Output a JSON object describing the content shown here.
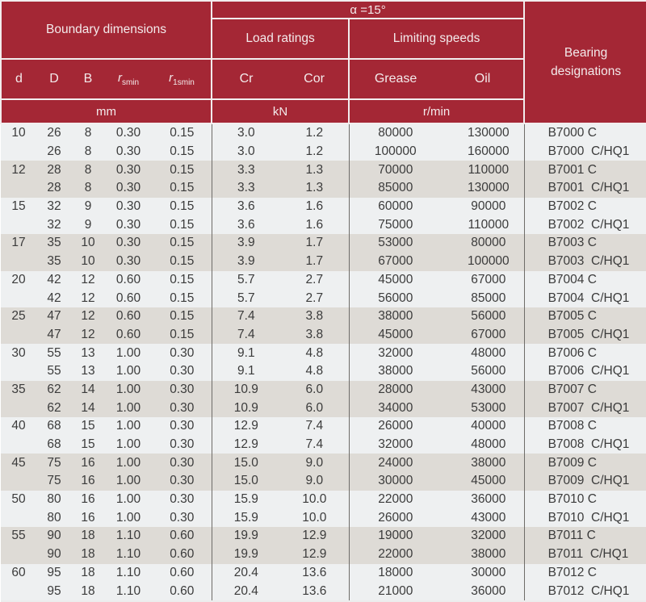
{
  "header": {
    "alpha_label": "α =15°",
    "boundary_dimensions": "Boundary dimensions",
    "load_ratings": "Load ratings",
    "limiting_speeds": "Limiting speeds",
    "bearing_designations": "Bearing designations",
    "columns": {
      "d": "d",
      "D": "D",
      "B": "B",
      "rs_base": "r",
      "rs_sub": "smin",
      "r1s_base": "r",
      "r1s_sub": "1smin",
      "cr": "Cr",
      "cor": "Cor",
      "grease": "Grease",
      "oil": "Oil"
    },
    "units": {
      "mm": "mm",
      "kn": "kN",
      "rmin": "r/min"
    }
  },
  "colors": {
    "header_bg": "#a42735",
    "header_text": "#f3eaeb",
    "line_light": "#f2edee",
    "band_light": "#eef0f1",
    "band_dark": "#dedbd6",
    "grid_line": "#6e6c69",
    "data_text": "#3b3b3b"
  },
  "table": {
    "col_names": [
      "d",
      "D",
      "B",
      "rsmin",
      "r1smin",
      "cr",
      "cor",
      "grease",
      "oil",
      "designation"
    ],
    "rows": [
      [
        "10",
        "26",
        "8",
        "0.30",
        "0.15",
        "3.0",
        "1.2",
        "80000",
        "130000",
        "B7000 C"
      ],
      [
        "",
        "26",
        "8",
        "0.30",
        "0.15",
        "3.0",
        "1.2",
        "100000",
        "160000",
        "B7000  C/HQ1"
      ],
      [
        "12",
        "28",
        "8",
        "0.30",
        "0.15",
        "3.3",
        "1.3",
        "70000",
        "110000",
        "B7001 C"
      ],
      [
        "",
        "28",
        "8",
        "0.30",
        "0.15",
        "3.3",
        "1.3",
        "85000",
        "130000",
        "B7001  C/HQ1"
      ],
      [
        "15",
        "32",
        "9",
        "0.30",
        "0.15",
        "3.6",
        "1.6",
        "60000",
        "90000",
        "B7002 C"
      ],
      [
        "",
        "32",
        "9",
        "0.30",
        "0.15",
        "3.6",
        "1.6",
        "75000",
        "110000",
        "B7002  C/HQ1"
      ],
      [
        "17",
        "35",
        "10",
        "0.30",
        "0.15",
        "3.9",
        "1.7",
        "53000",
        "80000",
        "B7003 C"
      ],
      [
        "",
        "35",
        "10",
        "0.30",
        "0.15",
        "3.9",
        "1.7",
        "67000",
        "100000",
        "B7003  C/HQ1"
      ],
      [
        "20",
        "42",
        "12",
        "0.60",
        "0.15",
        "5.7",
        "2.7",
        "45000",
        "67000",
        "B7004 C"
      ],
      [
        "",
        "42",
        "12",
        "0.60",
        "0.15",
        "5.7",
        "2.7",
        "56000",
        "85000",
        "B7004  C/HQ1"
      ],
      [
        "25",
        "47",
        "12",
        "0.60",
        "0.15",
        "7.4",
        "3.8",
        "38000",
        "56000",
        "B7005 C"
      ],
      [
        "",
        "47",
        "12",
        "0.60",
        "0.15",
        "7.4",
        "3.8",
        "45000",
        "67000",
        "B7005  C/HQ1"
      ],
      [
        "30",
        "55",
        "13",
        "1.00",
        "0.30",
        "9.1",
        "4.8",
        "32000",
        "48000",
        "B7006 C"
      ],
      [
        "",
        "55",
        "13",
        "1.00",
        "0.30",
        "9.1",
        "4.8",
        "38000",
        "56000",
        "B7006  C/HQ1"
      ],
      [
        "35",
        "62",
        "14",
        "1.00",
        "0.30",
        "10.9",
        "6.0",
        "28000",
        "43000",
        "B7007 C"
      ],
      [
        "",
        "62",
        "14",
        "1.00",
        "0.30",
        "10.9",
        "6.0",
        "34000",
        "53000",
        "B7007  C/HQ1"
      ],
      [
        "40",
        "68",
        "15",
        "1.00",
        "0.30",
        "12.9",
        "7.4",
        "26000",
        "40000",
        "B7008 C"
      ],
      [
        "",
        "68",
        "15",
        "1.00",
        "0.30",
        "12.9",
        "7.4",
        "32000",
        "48000",
        "B7008  C/HQ1"
      ],
      [
        "45",
        "75",
        "16",
        "1.00",
        "0.30",
        "15.0",
        "9.0",
        "24000",
        "38000",
        "B7009 C"
      ],
      [
        "",
        "75",
        "16",
        "1.00",
        "0.30",
        "15.0",
        "9.0",
        "30000",
        "45000",
        "B7009  C/HQ1"
      ],
      [
        "50",
        "80",
        "16",
        "1.00",
        "0.30",
        "15.9",
        "10.0",
        "22000",
        "36000",
        "B7010 C"
      ],
      [
        "",
        "80",
        "16",
        "1.00",
        "0.30",
        "15.9",
        "10.0",
        "26000",
        "43000",
        "B7010  C/HQ1"
      ],
      [
        "55",
        "90",
        "18",
        "1.10",
        "0.60",
        "19.9",
        "12.9",
        "19000",
        "32000",
        "B7011 C"
      ],
      [
        "",
        "90",
        "18",
        "1.10",
        "0.60",
        "19.9",
        "12.9",
        "22000",
        "38000",
        "B7011  C/HQ1"
      ],
      [
        "60",
        "95",
        "18",
        "1.10",
        "0.60",
        "20.4",
        "13.6",
        "18000",
        "30000",
        "B7012 C"
      ],
      [
        "",
        "95",
        "18",
        "1.10",
        "0.60",
        "20.4",
        "13.6",
        "21000",
        "36000",
        "B7012  C/HQ1"
      ]
    ]
  }
}
